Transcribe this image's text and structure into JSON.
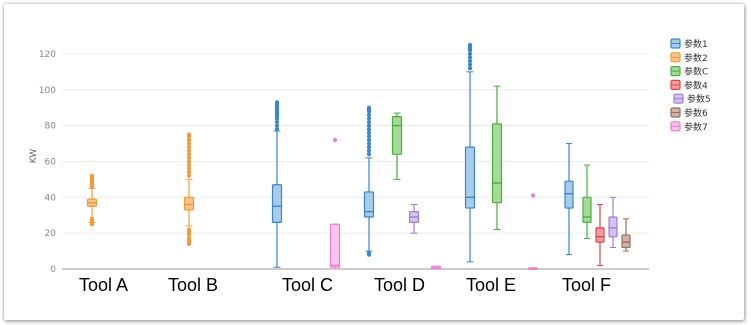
{
  "chart_data": {
    "type": "box",
    "ylabel": "KW",
    "ylim": [
      0,
      130
    ],
    "yticks": [
      0,
      20,
      40,
      60,
      80,
      100,
      120
    ],
    "grid": "horizontal",
    "legend_position": "right",
    "categories": [
      "Tool A",
      "Tool B",
      "Tool C",
      "Tool D",
      "Tool E",
      "Tool F"
    ],
    "series": [
      {
        "name": "参数1",
        "color": "#3A86C8",
        "fill": "#A9CBEA"
      },
      {
        "name": "参数2",
        "color": "#F39A38",
        "fill": "#F8C58F"
      },
      {
        "name": "参数C",
        "color": "#4AAE3E",
        "fill": "#A5DB99"
      },
      {
        "name": "参数4",
        "color": "#E34548",
        "fill": "#F29E9F"
      },
      {
        "name": "参数5",
        "color": "#A07ED2",
        "fill": "#D3C3EC"
      },
      {
        "name": "参数6",
        "color": "#9A6E5E",
        "fill": "#CDB3A8"
      },
      {
        "name": "参数7",
        "color": "#E87FCC",
        "fill": "#F6C4EC"
      }
    ],
    "boxes": [
      {
        "category": "Tool A",
        "series": "参数2",
        "whisker_low": 26,
        "q1": 35,
        "median": 37,
        "q3": 39,
        "whisker_high": 45,
        "outliers_low": [
          25,
          26,
          27,
          28
        ],
        "outliers_high": [
          46,
          47,
          48,
          49,
          50,
          51,
          52
        ]
      },
      {
        "category": "Tool B",
        "series": "参数2",
        "whisker_low": 24,
        "q1": 33,
        "median": 36,
        "q3": 40,
        "whisker_high": 50,
        "outliers_low": [
          14,
          15,
          16,
          17,
          19,
          20,
          21,
          22
        ],
        "outliers_high": [
          52,
          54,
          56,
          58,
          60,
          62,
          64,
          66,
          68,
          70,
          72,
          74,
          75
        ]
      },
      {
        "category": "Tool C",
        "series": "参数1",
        "whisker_low": 1,
        "q1": 26,
        "median": 35,
        "q3": 47,
        "whisker_high": 77,
        "outliers_low": [],
        "outliers_high": [
          78,
          80,
          82,
          84,
          85,
          86,
          87,
          88,
          89,
          90,
          91,
          92,
          93
        ]
      },
      {
        "category": "Tool C",
        "series": "参数7",
        "whisker_low": 0,
        "q1": 1,
        "median": 2,
        "q3": 25,
        "whisker_high": 25,
        "outliers_low": [],
        "outliers_high": [
          72
        ]
      },
      {
        "category": "Tool D",
        "series": "参数1",
        "whisker_low": 10,
        "q1": 29,
        "median": 32,
        "q3": 43,
        "whisker_high": 62,
        "outliers_low": [
          8,
          9
        ],
        "outliers_high": [
          64,
          66,
          68,
          70,
          72,
          74,
          76,
          78,
          80,
          82,
          84,
          86,
          88,
          89,
          90
        ]
      },
      {
        "category": "Tool D",
        "series": "参数C",
        "whisker_low": 50,
        "q1": 64,
        "median": 80,
        "q3": 85,
        "whisker_high": 87,
        "outliers_low": [],
        "outliers_high": []
      },
      {
        "category": "Tool D",
        "series": "参数5",
        "whisker_low": 20,
        "q1": 26,
        "median": 29,
        "q3": 32,
        "whisker_high": 36,
        "outliers_low": [],
        "outliers_high": []
      },
      {
        "category": "Tool D",
        "series": "参数7",
        "whisker_low": 0,
        "q1": 0,
        "median": 0.5,
        "q3": 1.5,
        "whisker_high": 1.5,
        "outliers_low": [],
        "outliers_high": []
      },
      {
        "category": "Tool E",
        "series": "参数1",
        "whisker_low": 4,
        "q1": 34,
        "median": 40,
        "q3": 68,
        "whisker_high": 110,
        "outliers_low": [],
        "outliers_high": [
          112,
          114,
          116,
          118,
          120,
          122,
          123,
          124,
          125
        ]
      },
      {
        "category": "Tool E",
        "series": "参数C",
        "whisker_low": 22,
        "q1": 37,
        "median": 48,
        "q3": 81,
        "whisker_high": 102,
        "outliers_low": [],
        "outliers_high": []
      },
      {
        "category": "Tool E",
        "series": "参数7",
        "whisker_low": 0,
        "q1": 0,
        "median": 0,
        "q3": 0.6,
        "whisker_high": 0.6,
        "outliers_low": [],
        "outliers_high": [
          41
        ]
      },
      {
        "category": "Tool F",
        "series": "参数1",
        "whisker_low": 8,
        "q1": 34,
        "median": 42,
        "q3": 49,
        "whisker_high": 70,
        "outliers_low": [],
        "outliers_high": []
      },
      {
        "category": "Tool F",
        "series": "参数C",
        "whisker_low": 17,
        "q1": 26,
        "median": 29,
        "q3": 40,
        "whisker_high": 58,
        "outliers_low": [],
        "outliers_high": []
      },
      {
        "category": "Tool F",
        "series": "参数4",
        "whisker_low": 2,
        "q1": 15,
        "median": 18,
        "q3": 23,
        "whisker_high": 36,
        "outliers_low": [],
        "outliers_high": []
      },
      {
        "category": "Tool F",
        "series": "参数5",
        "whisker_low": 12,
        "q1": 18,
        "median": 23,
        "q3": 29,
        "whisker_high": 40,
        "outliers_low": [],
        "outliers_high": []
      },
      {
        "category": "Tool F",
        "series": "参数6",
        "whisker_low": 10,
        "q1": 12,
        "median": 15,
        "q3": 19,
        "whisker_high": 28,
        "outliers_low": [],
        "outliers_high": []
      }
    ]
  }
}
